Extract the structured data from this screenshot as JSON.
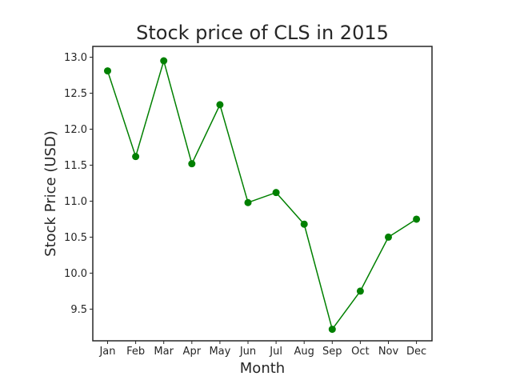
{
  "chart_data": {
    "type": "line",
    "title": "Stock price of CLS in 2015",
    "xlabel": "Month",
    "ylabel": "Stock Price (USD)",
    "categories": [
      "Jan",
      "Feb",
      "Mar",
      "Apr",
      "May",
      "Jun",
      "Jul",
      "Aug",
      "Sep",
      "Oct",
      "Nov",
      "Dec"
    ],
    "series": [
      {
        "values": [
          12.81,
          11.62,
          12.95,
          11.52,
          12.34,
          10.98,
          11.12,
          10.68,
          9.22,
          9.75,
          10.5,
          10.75
        ],
        "color": "#008000",
        "marker": "circle"
      }
    ],
    "ylim": [
      9.06,
      13.15
    ],
    "yticks": [
      9.5,
      10.0,
      10.5,
      11.0,
      11.5,
      12.0,
      12.5,
      13.0
    ],
    "ytick_labels": [
      "9.5",
      "10.0",
      "10.5",
      "11.0",
      "11.5",
      "12.0",
      "12.5",
      "13.0"
    ],
    "grid": false,
    "legend": "none"
  }
}
